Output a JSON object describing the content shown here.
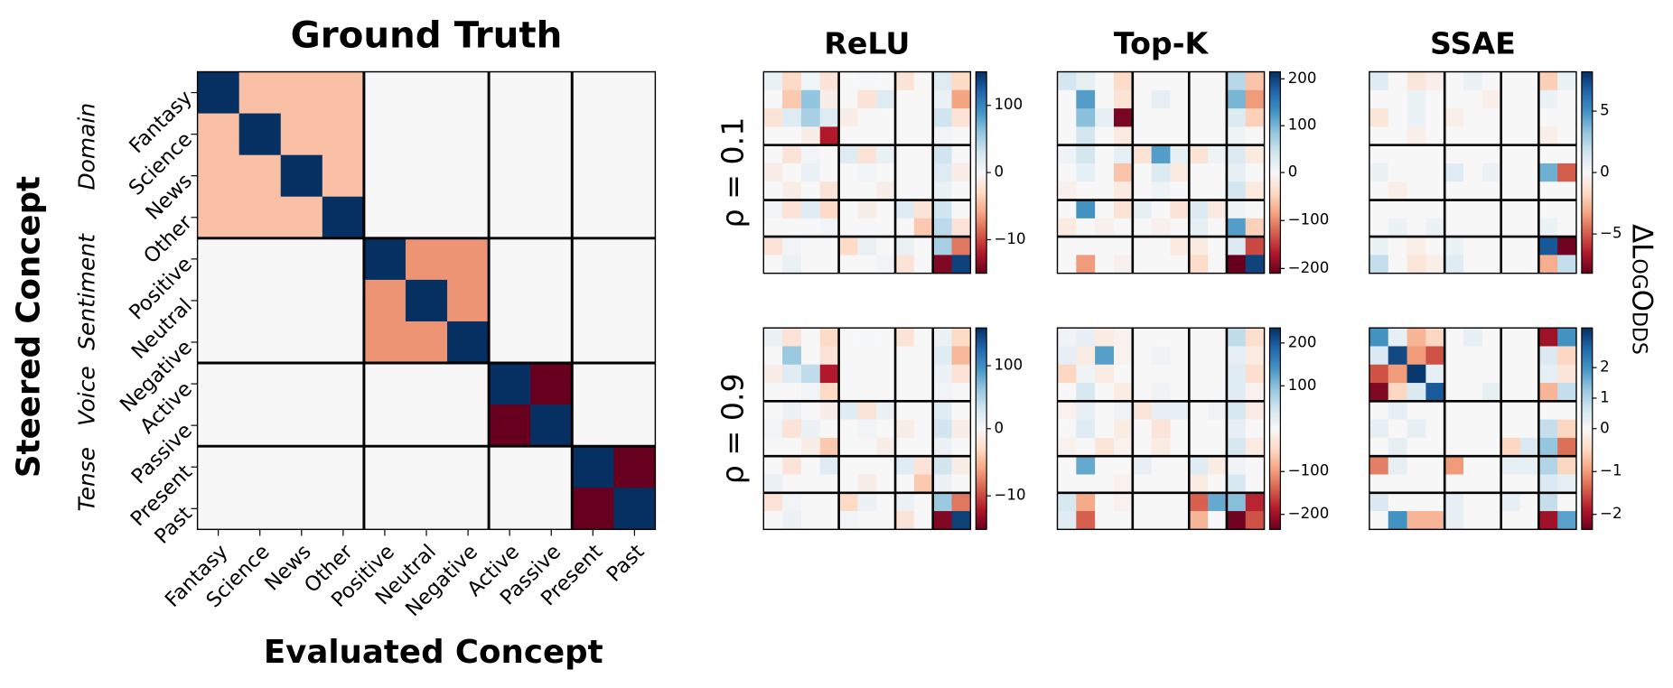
{
  "colorbar_label": "ΔLogOdds",
  "chart_data": [
    {
      "type": "heatmap",
      "title": "Ground Truth",
      "xlabel": "Evaluated Concept",
      "ylabel": "Steered Concept",
      "colormap": "RdBu",
      "categories": [
        {
          "group": "Domain",
          "items": [
            "Fantasy",
            "Science",
            "News",
            "Other"
          ]
        },
        {
          "group": "Sentiment",
          "items": [
            "Positive",
            "Neutral",
            "Negative"
          ]
        },
        {
          "group": "Voice",
          "items": [
            "Active",
            "Passive"
          ]
        },
        {
          "group": "Tense",
          "items": [
            "Present",
            "Past"
          ]
        }
      ],
      "clim": [
        -1,
        1
      ],
      "values": [
        [
          1,
          -0.3,
          -0.3,
          -0.3,
          0,
          0,
          0,
          0,
          0,
          0,
          0
        ],
        [
          -0.3,
          1,
          -0.3,
          -0.3,
          0,
          0,
          0,
          0,
          0,
          0,
          0
        ],
        [
          -0.3,
          -0.3,
          1,
          -0.3,
          0,
          0,
          0,
          0,
          0,
          0,
          0
        ],
        [
          -0.3,
          -0.3,
          -0.3,
          1,
          0,
          0,
          0,
          0,
          0,
          0,
          0
        ],
        [
          0,
          0,
          0,
          0,
          1,
          -0.45,
          -0.45,
          0,
          0,
          0,
          0
        ],
        [
          0,
          0,
          0,
          0,
          -0.45,
          1,
          -0.45,
          0,
          0,
          0,
          0
        ],
        [
          0,
          0,
          0,
          0,
          -0.45,
          -0.45,
          1,
          0,
          0,
          0,
          0
        ],
        [
          0,
          0,
          0,
          0,
          0,
          0,
          0,
          1,
          -1,
          0,
          0
        ],
        [
          0,
          0,
          0,
          0,
          0,
          0,
          0,
          -1,
          1,
          0,
          0
        ],
        [
          0,
          0,
          0,
          0,
          0,
          0,
          0,
          0,
          0,
          1,
          -1
        ],
        [
          0,
          0,
          0,
          0,
          0,
          0,
          0,
          0,
          0,
          -1,
          1
        ]
      ]
    },
    {
      "type": "heatmap",
      "title": "ReLU",
      "row_label": "ρ = 0.1",
      "colormap": "RdBu",
      "clim": [
        -15,
        150
      ],
      "cticks": [
        100,
        0,
        {
          "value": -10,
          "label": "−10"
        }
      ],
      "values": [
        [
          10,
          -3,
          5,
          -2,
          0,
          2,
          0,
          -2,
          0,
          20,
          -3
        ],
        [
          0,
          -4,
          60,
          -1,
          0,
          -2,
          20,
          0,
          0,
          10,
          -6
        ],
        [
          -2,
          20,
          50,
          20,
          -1,
          0,
          0,
          0,
          0,
          30,
          -2
        ],
        [
          0,
          0,
          -1,
          -12,
          0,
          0,
          0,
          0,
          0,
          5,
          0
        ],
        [
          0,
          -2,
          5,
          0,
          20,
          -2,
          10,
          0,
          0,
          30,
          0
        ],
        [
          -1,
          0,
          10,
          0,
          0,
          5,
          0,
          0,
          0,
          20,
          -1
        ],
        [
          0,
          -1,
          0,
          -2,
          0,
          0,
          -1,
          0,
          0,
          10,
          0
        ],
        [
          5,
          -2,
          20,
          -3,
          0,
          -1,
          0,
          20,
          -2,
          30,
          0
        ],
        [
          0,
          0,
          0,
          5,
          0,
          0,
          0,
          0,
          -4,
          40,
          -2
        ],
        [
          -2,
          5,
          0,
          0,
          -3,
          10,
          0,
          10,
          0,
          50,
          -8
        ],
        [
          0,
          10,
          0,
          0,
          0,
          0,
          5,
          -2,
          0,
          -14,
          140
        ]
      ]
    },
    {
      "type": "heatmap",
      "title": "Top-K",
      "colormap": "RdBu",
      "clim": [
        -210,
        215
      ],
      "cticks": [
        200,
        100,
        0,
        {
          "value": -100,
          "label": "−100"
        },
        {
          "value": -200,
          "label": "−200"
        }
      ],
      "values": [
        [
          40,
          20,
          0,
          -40,
          0,
          0,
          0,
          0,
          0,
          60,
          -60
        ],
        [
          0,
          120,
          0,
          -30,
          0,
          20,
          0,
          0,
          0,
          100,
          -90
        ],
        [
          0,
          90,
          20,
          -200,
          0,
          0,
          0,
          0,
          0,
          30,
          -50
        ],
        [
          0,
          40,
          0,
          -20,
          0,
          0,
          0,
          0,
          0,
          10,
          0
        ],
        [
          10,
          40,
          0,
          20,
          -30,
          120,
          20,
          -30,
          10,
          30,
          -20
        ],
        [
          0,
          20,
          0,
          -60,
          0,
          30,
          -20,
          0,
          0,
          20,
          0
        ],
        [
          -10,
          0,
          0,
          -20,
          0,
          10,
          0,
          0,
          0,
          40,
          -20
        ],
        [
          0,
          130,
          0,
          -30,
          20,
          0,
          -30,
          30,
          -20,
          10,
          0
        ],
        [
          -20,
          0,
          -10,
          0,
          0,
          -10,
          0,
          20,
          0,
          120,
          -50
        ],
        [
          0,
          0,
          0,
          0,
          0,
          0,
          -20,
          -20,
          0,
          30,
          -140
        ],
        [
          0,
          -90,
          0,
          -10,
          0,
          0,
          0,
          -40,
          0,
          -210,
          200
        ]
      ]
    },
    {
      "type": "heatmap",
      "title": "SSAE",
      "colormap": "RdBu",
      "clim": [
        -8.2,
        8.2
      ],
      "cticks": [
        5,
        0,
        {
          "value": -5,
          "label": "−5"
        }
      ],
      "values": [
        [
          1,
          0,
          -1,
          -0.5,
          0,
          0.5,
          0,
          0,
          0,
          -2,
          0.5
        ],
        [
          0,
          0,
          0.5,
          0,
          0,
          0,
          -0.5,
          0,
          0,
          0.5,
          0
        ],
        [
          -1,
          0,
          0.5,
          0,
          -0.5,
          0,
          0,
          0,
          0,
          0,
          0
        ],
        [
          0,
          0,
          -0.5,
          0,
          0,
          0,
          0,
          0,
          0,
          -0.5,
          0
        ],
        [
          0,
          0,
          0,
          0,
          0,
          0,
          0,
          0,
          0,
          0,
          0
        ],
        [
          0.5,
          0,
          0,
          0,
          1,
          0,
          0.5,
          0,
          0,
          4,
          -5
        ],
        [
          0,
          -0.5,
          0,
          0,
          0,
          0,
          0,
          0,
          0,
          0,
          0
        ],
        [
          0,
          0,
          0,
          0,
          0,
          0,
          0,
          0,
          0,
          0,
          0
        ],
        [
          0,
          0.5,
          0,
          0.5,
          0,
          0,
          0,
          0,
          0,
          0.5,
          0
        ],
        [
          0.5,
          0,
          -0.5,
          0,
          0.5,
          0,
          0,
          0,
          0,
          7,
          -8
        ],
        [
          2,
          0,
          -1,
          -0.5,
          1,
          0,
          0,
          0,
          0,
          -3,
          2
        ]
      ]
    },
    {
      "type": "heatmap",
      "row_label": "ρ = 0.9",
      "colormap": "RdBu",
      "clim": [
        -15,
        160
      ],
      "cticks": [
        100,
        0,
        {
          "value": -10,
          "label": "−10"
        }
      ],
      "values": [
        [
          10,
          -2,
          0,
          -3,
          0,
          2,
          0,
          -2,
          0,
          10,
          -3
        ],
        [
          0,
          60,
          0,
          -2,
          0,
          0,
          0,
          0,
          0,
          20,
          -5
        ],
        [
          -1,
          20,
          40,
          -12,
          0,
          0,
          0,
          0,
          0,
          10,
          -2
        ],
        [
          0,
          0,
          5,
          -3,
          0,
          0,
          0,
          0,
          0,
          5,
          0
        ],
        [
          0,
          10,
          0,
          -1,
          20,
          -2,
          10,
          0,
          0,
          20,
          0
        ],
        [
          5,
          -2,
          10,
          0,
          0,
          5,
          0,
          -1,
          0,
          30,
          -1
        ],
        [
          0,
          0,
          -1,
          -4,
          0,
          0,
          -1,
          0,
          0,
          10,
          0
        ],
        [
          0,
          -2,
          0,
          20,
          0,
          0,
          0,
          20,
          -2,
          30,
          -1
        ],
        [
          10,
          0,
          0,
          0,
          0,
          -1,
          0,
          0,
          -4,
          10,
          0
        ],
        [
          -2,
          5,
          0,
          0,
          -3,
          10,
          0,
          10,
          0,
          60,
          -8
        ],
        [
          0,
          10,
          0,
          0,
          5,
          0,
          0,
          -2,
          0,
          -14,
          150
        ]
      ]
    },
    {
      "type": "heatmap",
      "colormap": "RdBu",
      "clim": [
        -235,
        235
      ],
      "cticks": [
        200,
        100,
        {
          "value": -100,
          "label": "−100"
        },
        {
          "value": -200,
          "label": "−200"
        }
      ],
      "values": [
        [
          10,
          20,
          -20,
          -10,
          0,
          0,
          0,
          0,
          0,
          60,
          -40
        ],
        [
          20,
          -20,
          130,
          -10,
          0,
          10,
          0,
          0,
          0,
          20,
          -20
        ],
        [
          -50,
          10,
          -20,
          0,
          0,
          0,
          0,
          0,
          0,
          30,
          -40
        ],
        [
          0,
          40,
          0,
          -20,
          0,
          10,
          0,
          0,
          0,
          30,
          -10
        ],
        [
          -10,
          20,
          0,
          10,
          -30,
          20,
          20,
          0,
          10,
          40,
          -20
        ],
        [
          0,
          30,
          0,
          -20,
          0,
          -30,
          0,
          0,
          0,
          20,
          0
        ],
        [
          -10,
          0,
          -30,
          -10,
          0,
          -20,
          0,
          0,
          0,
          40,
          -20
        ],
        [
          0,
          120,
          0,
          0,
          20,
          0,
          0,
          30,
          -20,
          10,
          0
        ],
        [
          0,
          0,
          0,
          -10,
          0,
          0,
          0,
          -20,
          0,
          40,
          0
        ],
        [
          40,
          -90,
          0,
          -10,
          0,
          0,
          0,
          -140,
          120,
          100,
          -180
        ],
        [
          30,
          -140,
          0,
          0,
          0,
          0,
          0,
          -80,
          0,
          -230,
          -150
        ]
      ]
    },
    {
      "type": "heatmap",
      "colormap": "RdBu",
      "clim": [
        -2.35,
        3.3
      ],
      "cticks": [
        2,
        1,
        0,
        {
          "value": -1,
          "label": "−1"
        },
        {
          "value": -2,
          "label": "−2"
        }
      ],
      "values": [
        [
          2,
          0.3,
          -0.8,
          -0.5,
          0,
          0.3,
          0,
          0,
          0,
          -2,
          2
        ],
        [
          0.5,
          3,
          -1,
          -1.5,
          0,
          0,
          0,
          0,
          0,
          0.5,
          -0.5
        ],
        [
          -1.5,
          -1,
          3.2,
          0.3,
          0,
          0,
          0,
          0,
          0,
          0.3,
          -0.3
        ],
        [
          -2.2,
          -0.5,
          0.5,
          2.8,
          0,
          0,
          0.3,
          0,
          0,
          -0.8,
          0.8
        ],
        [
          0,
          0.3,
          0,
          0,
          0,
          0,
          0,
          0,
          0,
          0,
          0
        ],
        [
          0.3,
          0,
          0.3,
          0,
          0,
          0,
          0,
          0,
          0,
          0.8,
          -0.5
        ],
        [
          0,
          0.3,
          0,
          0,
          0,
          0,
          0,
          -0.5,
          0.5,
          1.3,
          -1.3
        ],
        [
          -1.2,
          0.3,
          0,
          0,
          -1,
          0,
          0,
          0.3,
          0.3,
          1,
          -0.5
        ],
        [
          0,
          0,
          0,
          0,
          0,
          0,
          0,
          0,
          0,
          0.5,
          0.3
        ],
        [
          0.5,
          0,
          0,
          0,
          0.3,
          0,
          0,
          0.3,
          0,
          0.8,
          0
        ],
        [
          0,
          2,
          -0.8,
          -0.8,
          0.3,
          0,
          0,
          0,
          0,
          -2,
          1.8
        ]
      ]
    }
  ]
}
